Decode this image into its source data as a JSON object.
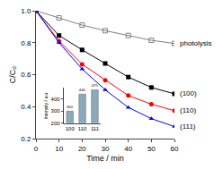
{
  "chart_data": [
    {
      "type": "line",
      "xlabel": "Time / min",
      "ylabel": "C/C₀",
      "x": [
        0,
        10,
        20,
        30,
        40,
        50,
        60
      ],
      "series": [
        {
          "name": "photolysis",
          "color": "gray",
          "marker": "square-open",
          "values": [
            1.0,
            0.955,
            0.91,
            0.875,
            0.845,
            0.815,
            0.795
          ]
        },
        {
          "name": "(100)",
          "color": "black",
          "marker": "square",
          "values": [
            1.0,
            0.845,
            0.755,
            0.67,
            0.585,
            0.52,
            0.48
          ]
        },
        {
          "name": "(110)",
          "color": "red",
          "marker": "circle",
          "values": [
            1.0,
            0.81,
            0.665,
            0.565,
            0.47,
            0.415,
            0.375
          ]
        },
        {
          "name": "(111)",
          "color": "blue",
          "marker": "triangle-up",
          "values": [
            1.0,
            0.8,
            0.635,
            0.505,
            0.395,
            0.325,
            0.275
          ]
        }
      ],
      "xlim": [
        0,
        60
      ],
      "ylim": [
        0.2,
        1.0
      ],
      "xticks": [
        0,
        10,
        20,
        30,
        40,
        50,
        60
      ],
      "yticks": [
        0.2,
        0.4,
        0.6,
        0.8,
        {
          "value": 1.0,
          "label": "1.0"
        }
      ],
      "grid": false
    },
    {
      "type": "bar",
      "ylabel": "Intensity / a.u.",
      "categories": [
        "100",
        "110",
        "111"
      ],
      "values": [
        300,
        440,
        475
      ],
      "color": "#8aaabb",
      "ylim": [
        200,
        495
      ],
      "yticks": [
        200,
        300,
        400
      ],
      "data_labels": true,
      "grid": false
    }
  ]
}
